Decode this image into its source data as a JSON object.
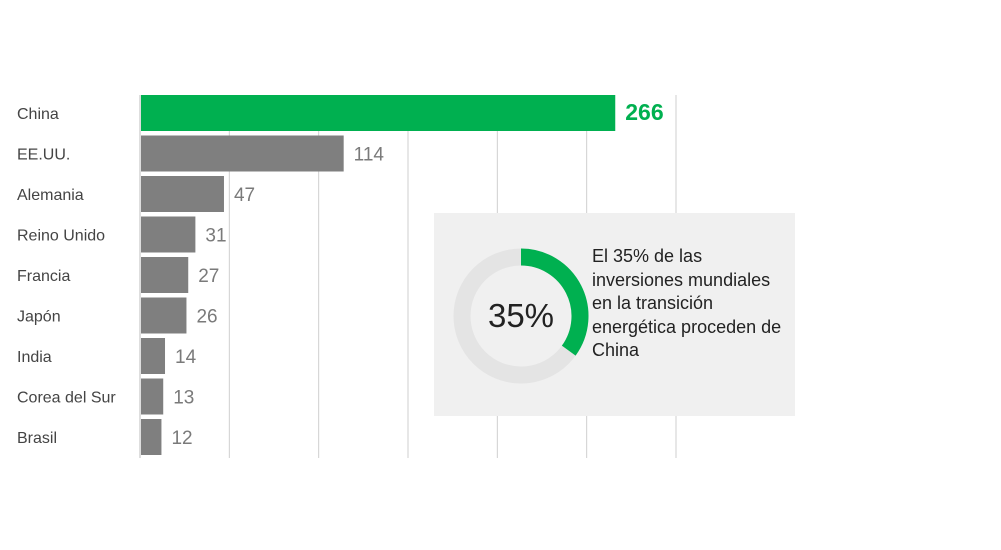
{
  "chart_data": {
    "type": "bar",
    "orientation": "horizontal",
    "categories": [
      "China",
      "EE.UU.",
      "Alemania",
      "Reino Unido",
      "Francia",
      "Japón",
      "India",
      "Corea del Sur",
      "Brasil"
    ],
    "values": [
      266,
      114,
      47,
      31,
      27,
      26,
      14,
      13,
      12
    ],
    "value_labels": [
      "266",
      "114",
      "47",
      "31",
      "27",
      "26",
      "14",
      "13",
      "12"
    ],
    "xlim": [
      0,
      300
    ],
    "grid": true,
    "highlight_index": 0,
    "colors": {
      "highlight": "#00b050",
      "bar": "#7f7f7f",
      "value_text": "#7a7a7a",
      "grid": "#cfcfcf"
    }
  },
  "callout": {
    "percent": 35,
    "percent_label": "35%",
    "text": "El 35% de las inversiones mundiales en la transición energética proceden de China",
    "colors": {
      "ring_fill": "#00b050",
      "ring_track": "#e4e4e4",
      "panel_bg": "#f0f0f0"
    }
  }
}
